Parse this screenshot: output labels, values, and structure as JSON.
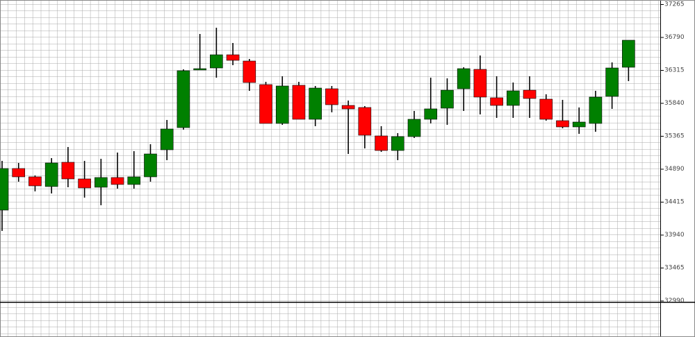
{
  "chart_data": {
    "type": "candlestick",
    "categories": [
      null,
      null,
      null,
      null,
      null,
      null,
      null,
      null,
      null,
      null,
      null,
      null,
      null,
      null,
      null,
      null,
      null,
      null,
      null,
      null,
      null,
      null,
      null,
      null,
      null,
      null,
      null,
      null,
      null,
      null,
      null,
      null,
      null,
      null,
      null,
      null,
      null,
      null,
      null
    ],
    "open": [
      34300,
      34900,
      34780,
      34640,
      34990,
      34750,
      34630,
      34770,
      34670,
      34780,
      35170,
      35490,
      36320,
      36350,
      36540,
      36450,
      36110,
      35550,
      36100,
      35610,
      36050,
      35810,
      35780,
      35370,
      35160,
      35360,
      35610,
      35770,
      36050,
      36330,
      35920,
      35810,
      36030,
      35900,
      35590,
      35500,
      35550,
      35940,
      36360
    ],
    "high": [
      35010,
      34980,
      34800,
      35050,
      35210,
      35010,
      35040,
      35130,
      35150,
      35250,
      35600,
      36330,
      36840,
      36930,
      36710,
      36480,
      36150,
      36230,
      36150,
      36090,
      36090,
      35880,
      35800,
      35510,
      35410,
      35730,
      36210,
      36200,
      36360,
      36530,
      36230,
      36140,
      36230,
      35970,
      35890,
      35780,
      36020,
      36430,
      36750
    ],
    "low": [
      34000,
      34710,
      34570,
      34540,
      34630,
      34480,
      34370,
      34610,
      34610,
      34710,
      35020,
      35460,
      36320,
      36210,
      36390,
      36020,
      35550,
      35530,
      35610,
      35510,
      35710,
      35110,
      35190,
      35140,
      35020,
      35340,
      35550,
      35530,
      35730,
      35680,
      35630,
      35630,
      35630,
      35590,
      35480,
      35400,
      35430,
      35760,
      36160
    ],
    "close": [
      34900,
      34780,
      34650,
      34980,
      34750,
      34620,
      34770,
      34670,
      34780,
      35110,
      35470,
      36310,
      36340,
      36540,
      36460,
      36140,
      35550,
      36090,
      35610,
      36060,
      35820,
      35760,
      35380,
      35160,
      35360,
      35610,
      35760,
      36030,
      36340,
      35930,
      35810,
      36020,
      35910,
      35610,
      35500,
      35570,
      35930,
      36350,
      36750
    ],
    "up_color": "#008000",
    "down_color": "#ff0000",
    "ylim": [
      32470,
      37330
    ],
    "yticks": [
      37265,
      36790,
      36315,
      35840,
      35365,
      34890,
      34415,
      33940,
      33465,
      32990
    ],
    "grid": true
  }
}
